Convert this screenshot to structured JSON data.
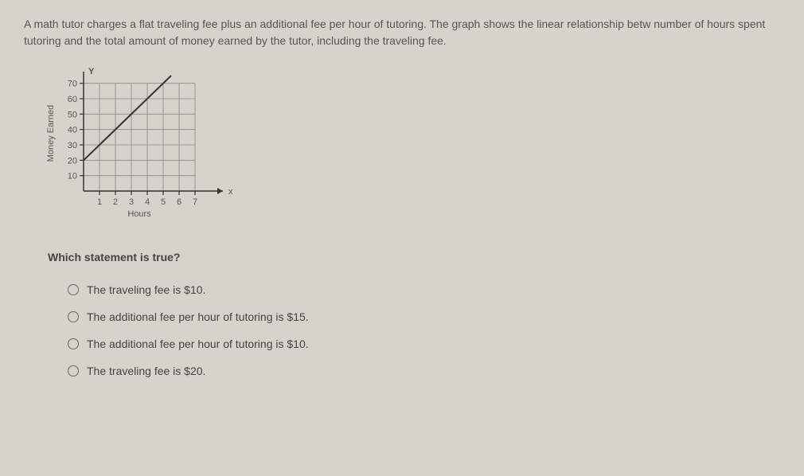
{
  "problem": "A math tutor charges a flat traveling fee plus an additional fee per hour of tutoring. The graph shows the linear relationship betw number of hours spent tutoring and the total amount of money earned by the tutor, including the traveling fee.",
  "chart": {
    "type": "line",
    "y_axis_label": "Money Earned",
    "x_axis_label": "Hours",
    "y_marker": "Y",
    "x_marker": "x",
    "x_ticks": [
      1,
      2,
      3,
      4,
      5,
      6,
      7
    ],
    "y_ticks": [
      10,
      20,
      30,
      40,
      50,
      60,
      70
    ],
    "x_range": [
      0,
      7.5
    ],
    "y_range": [
      0,
      75
    ],
    "line_points": [
      [
        0,
        20
      ],
      [
        5.5,
        75
      ]
    ],
    "line_color": "#333333",
    "line_width": 2,
    "grid_color": "#888888",
    "grid_width": 0.8,
    "axis_color": "#333333",
    "axis_width": 1.5,
    "background": "#d7d3cc",
    "label_fontsize": 11,
    "tick_fontsize": 11,
    "text_color": "#555555"
  },
  "question": "Which statement is true?",
  "options": [
    "The traveling fee is $10.",
    "The additional fee per hour of tutoring is $15.",
    "The additional fee per hour of tutoring is $10.",
    "The traveling fee is $20."
  ]
}
